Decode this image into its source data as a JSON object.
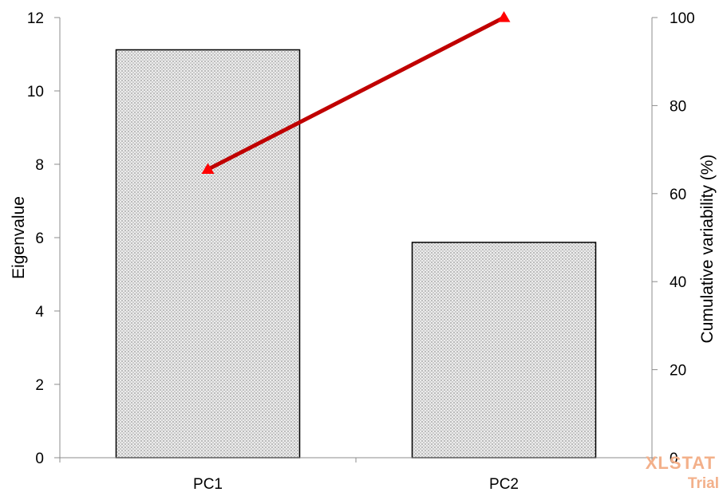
{
  "chart_data": {
    "type": "bar",
    "categories": [
      "PC1",
      "PC2"
    ],
    "series": [
      {
        "type": "bar",
        "axis": "left",
        "values": [
          11.12,
          5.87
        ]
      },
      {
        "type": "line",
        "axis": "right",
        "values": [
          65.5,
          100
        ]
      }
    ],
    "ylabel": "Eigenvalue",
    "ylabel_right": "Cumulative variability (%)",
    "ylim": [
      0,
      12
    ],
    "ylim_right": [
      0,
      100
    ],
    "yticks": [
      "0",
      "2",
      "4",
      "6",
      "8",
      "10",
      "12"
    ],
    "yticks_right": [
      "0",
      "20",
      "40",
      "60",
      "80",
      "100"
    ],
    "grid": false,
    "colors": {
      "bar_fill": "#d0d0d0",
      "bar_edge": "#000000",
      "line": "#c00000",
      "marker": "#ff0000"
    }
  },
  "watermark": {
    "line1": "XLSTAT",
    "line2": "Trial"
  }
}
